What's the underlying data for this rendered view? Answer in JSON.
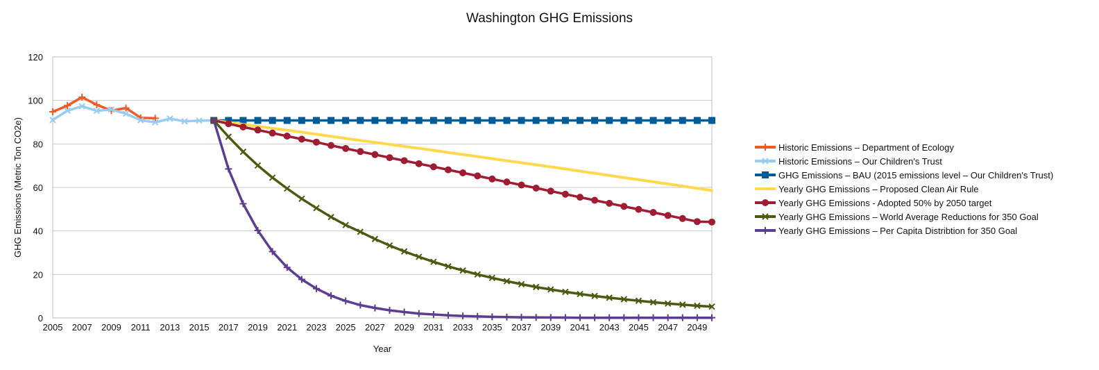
{
  "chart_data": {
    "type": "line",
    "title": "Washington GHG Emissions",
    "xlabel": "Year",
    "ylabel": "GHG Emissions (Metric Ton CO2e)",
    "xlim": [
      2005,
      2050
    ],
    "ylim": [
      0,
      120
    ],
    "yticks": [
      0,
      20,
      40,
      60,
      80,
      100,
      120
    ],
    "xticks": [
      2005,
      2007,
      2009,
      2011,
      2013,
      2015,
      2017,
      2019,
      2021,
      2023,
      2025,
      2027,
      2029,
      2031,
      2033,
      2035,
      2037,
      2039,
      2041,
      2043,
      2045,
      2047,
      2049
    ],
    "grid": "horizontal",
    "legend_position": "right",
    "series": [
      {
        "name": "Historic Emissions – Department of Ecology",
        "color": "#f15a24",
        "marker": "plus",
        "x": [
          2005,
          2006,
          2007,
          2008,
          2009,
          2010,
          2011,
          2012
        ],
        "y": [
          94.8,
          97.6,
          101.5,
          98.0,
          95.3,
          96.5,
          92.0,
          91.8
        ]
      },
      {
        "name": "Historic Emissions – Our Children's Trust",
        "color": "#99ccf2",
        "marker": "x",
        "x": [
          2005,
          2006,
          2007,
          2008,
          2009,
          2010,
          2011,
          2012,
          2013,
          2014,
          2015,
          2016
        ],
        "y": [
          91.0,
          95.3,
          97.3,
          95.2,
          95.8,
          93.9,
          90.9,
          89.9,
          91.6,
          90.4,
          90.7,
          90.8
        ]
      },
      {
        "name": "GHG Emissions – BAU (2015 emissions level – Our Children's Trust)",
        "color": "#005b96",
        "marker": "square",
        "x": [
          2016,
          2017,
          2018,
          2019,
          2020,
          2021,
          2022,
          2023,
          2024,
          2025,
          2026,
          2027,
          2028,
          2029,
          2030,
          2031,
          2032,
          2033,
          2034,
          2035,
          2036,
          2037,
          2038,
          2039,
          2040,
          2041,
          2042,
          2043,
          2044,
          2045,
          2046,
          2047,
          2048,
          2049,
          2050
        ],
        "y": [
          90.8,
          90.8,
          90.8,
          90.8,
          90.8,
          90.8,
          90.8,
          90.8,
          90.8,
          90.8,
          90.8,
          90.8,
          90.8,
          90.8,
          90.8,
          90.8,
          90.8,
          90.8,
          90.8,
          90.8,
          90.8,
          90.8,
          90.8,
          90.8,
          90.8,
          90.8,
          90.8,
          90.8,
          90.8,
          90.8,
          90.8,
          90.8,
          90.8,
          90.8,
          90.8
        ]
      },
      {
        "name": "Yearly GHG Emissions – Proposed Clean Air Rule",
        "color": "#ffd84d",
        "marker": "none",
        "x": [
          2016,
          2018,
          2020,
          2022,
          2024,
          2026,
          2028,
          2030,
          2032,
          2034,
          2036,
          2038,
          2040,
          2042,
          2044,
          2046,
          2048,
          2050
        ],
        "y": [
          90.8,
          89.0,
          87.2,
          85.4,
          83.5,
          81.6,
          79.8,
          78.0,
          76.1,
          74.2,
          72.3,
          70.4,
          68.5,
          66.5,
          64.5,
          62.6,
          60.6,
          58.6
        ]
      },
      {
        "name": "Yearly GHG Emissions - Adopted 50% by 2050 target",
        "color": "#a01c32",
        "marker": "circle",
        "x": [
          2016,
          2017,
          2018,
          2019,
          2020,
          2021,
          2022,
          2023,
          2024,
          2025,
          2026,
          2027,
          2028,
          2029,
          2030,
          2031,
          2032,
          2033,
          2034,
          2035,
          2036,
          2037,
          2038,
          2039,
          2040,
          2041,
          2042,
          2043,
          2044,
          2045,
          2046,
          2047,
          2048,
          2049,
          2050
        ],
        "y": [
          90.8,
          89.3,
          87.8,
          86.4,
          85.0,
          83.6,
          82.2,
          80.8,
          79.3,
          77.9,
          76.5,
          75.1,
          73.7,
          72.3,
          70.9,
          69.5,
          68.1,
          66.7,
          65.3,
          63.9,
          62.5,
          61.1,
          59.7,
          58.3,
          56.9,
          55.5,
          54.1,
          52.7,
          51.3,
          49.9,
          48.5,
          47.1,
          45.7,
          44.3,
          44.1
        ]
      },
      {
        "name": "Yearly GHG Emissions – World Average Reductions for 350 Goal",
        "color": "#4a5a10",
        "marker": "x",
        "x": [
          2016,
          2017,
          2018,
          2019,
          2020,
          2021,
          2022,
          2023,
          2024,
          2025,
          2026,
          2027,
          2028,
          2029,
          2030,
          2031,
          2032,
          2033,
          2034,
          2035,
          2036,
          2037,
          2038,
          2039,
          2040,
          2041,
          2042,
          2043,
          2044,
          2045,
          2046,
          2047,
          2048,
          2049,
          2050
        ],
        "y": [
          90.8,
          83.3,
          76.4,
          70.1,
          64.5,
          59.5,
          54.8,
          50.5,
          46.4,
          42.7,
          39.6,
          36.3,
          33.3,
          30.6,
          28.1,
          25.8,
          23.7,
          21.8,
          20.0,
          18.4,
          16.9,
          15.5,
          14.2,
          13.1,
          12.0,
          11.0,
          10.1,
          9.3,
          8.6,
          7.9,
          7.2,
          6.6,
          6.1,
          5.6,
          5.2
        ]
      },
      {
        "name": "Yearly GHG Emissions – Per Capita Distribtion for 350 Goal",
        "color": "#5c3d8f",
        "marker": "plus",
        "x": [
          2016,
          2017,
          2018,
          2019,
          2020,
          2021,
          2022,
          2023,
          2024,
          2025,
          2026,
          2027,
          2028,
          2029,
          2030,
          2031,
          2032,
          2033,
          2034,
          2035,
          2036,
          2037,
          2038,
          2039,
          2040,
          2041,
          2042,
          2043,
          2044,
          2045,
          2046,
          2047,
          2048,
          2049,
          2050
        ],
        "y": [
          90.8,
          68.5,
          52.5,
          40.2,
          30.5,
          23.2,
          17.7,
          13.5,
          10.2,
          7.8,
          5.9,
          4.6,
          3.5,
          2.7,
          2.0,
          1.6,
          1.2,
          0.9,
          0.7,
          0.5,
          0.4,
          0.3,
          0.25,
          0.2,
          0.15,
          0.1,
          0.1,
          0.1,
          0.1,
          0.1,
          0.1,
          0.1,
          0.1,
          0.1,
          0.1
        ]
      }
    ]
  }
}
